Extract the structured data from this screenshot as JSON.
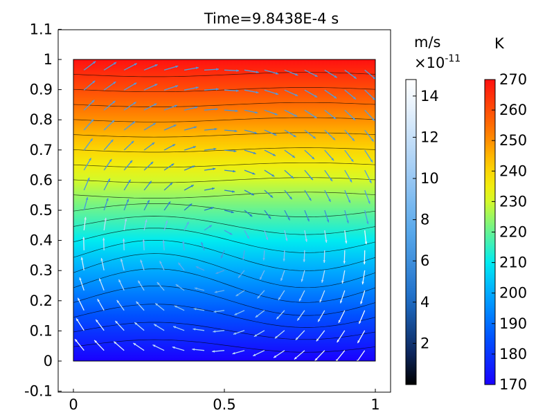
{
  "chart_data": {
    "type": "heatmap",
    "title": "Time=9.8438E-4 s",
    "xlim": [
      -0.05,
      1.05
    ],
    "ylim": [
      -0.1,
      1.1
    ],
    "x_ticks": [
      "0",
      "0.5",
      "1"
    ],
    "y_ticks": [
      "-0.1",
      "0",
      "0.1",
      "0.2",
      "0.3",
      "0.4",
      "0.5",
      "0.6",
      "0.7",
      "0.8",
      "0.9",
      "1",
      "1.1"
    ],
    "domain": {
      "x": [
        0,
        1
      ],
      "y": [
        0,
        1
      ]
    },
    "temperature": {
      "unit": "K",
      "range": [
        170,
        270
      ],
      "colormap": "rainbow",
      "colorbar_ticks": [
        "170",
        "180",
        "190",
        "200",
        "210",
        "220",
        "230",
        "240",
        "250",
        "260",
        "270"
      ]
    },
    "velocity": {
      "unit": "m/s",
      "multiplier": "×10",
      "exponent": "-11",
      "range": [
        0,
        14.8
      ],
      "colormap": "thermal-light",
      "colorbar_ticks": [
        "2",
        "4",
        "6",
        "8",
        "10",
        "12",
        "14"
      ],
      "flow": "single convective cell, clockwise circulation"
    },
    "isotherms": 20,
    "colors": {
      "cold": "#1a00ff",
      "hot": "#ff1010",
      "isotherm": "#000000"
    }
  }
}
